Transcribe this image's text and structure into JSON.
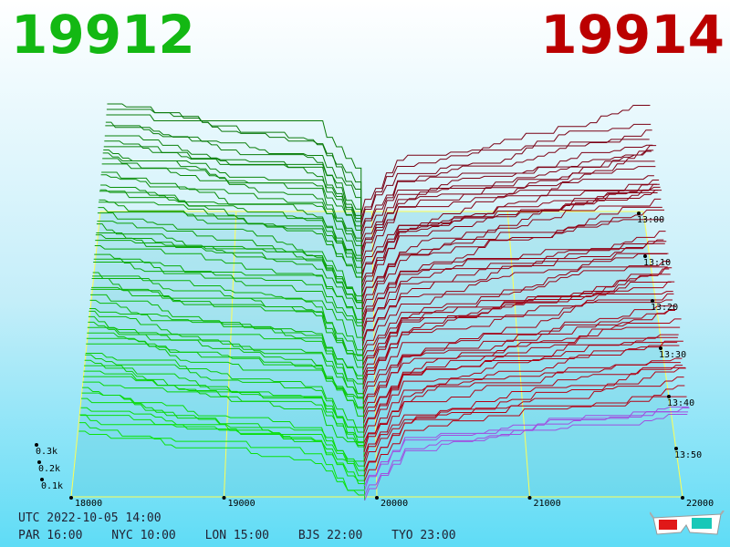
{
  "header": {
    "bid_price": "19912",
    "ask_price": "19914"
  },
  "info": {
    "utc_line": "UTC 2022-10-05 14:00",
    "zones": [
      "PAR 16:00",
      "NYC 10:00",
      "LON 15:00",
      "BJS 22:00",
      "TYO 23:00"
    ]
  },
  "colors": {
    "bid": "#13b813",
    "ask": "#b30000",
    "grid": "#ffff55",
    "ask_recent": "#a050e0"
  },
  "icons": {
    "toolbar": "3d-glasses-icon"
  },
  "chart_data": {
    "type": "3d-depth-surface",
    "x_ticks": [
      "18000",
      "19000",
      "20000",
      "21000",
      "22000"
    ],
    "z_ticks": [
      "0.1k",
      "0.2k",
      "0.3k"
    ],
    "time_ticks": [
      "13:00",
      "13:10",
      "13:20",
      "13:30",
      "13:40",
      "13:50"
    ],
    "xlim": [
      18000,
      22000
    ],
    "grid": true
  }
}
